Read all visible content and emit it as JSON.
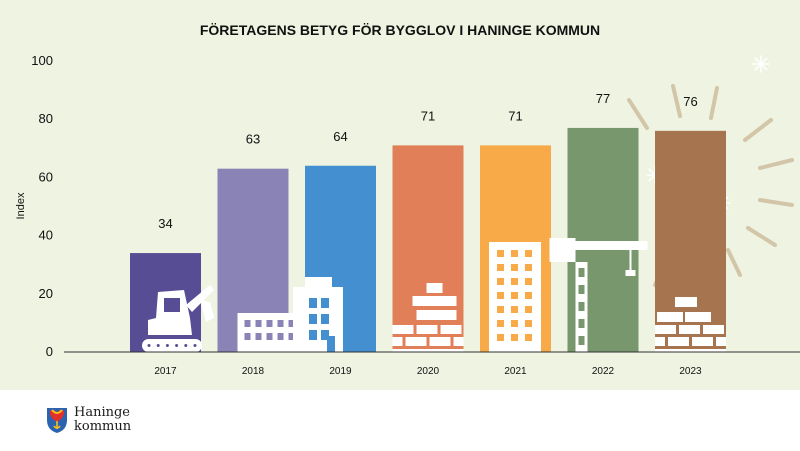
{
  "chart_data": {
    "type": "bar",
    "title": "FÖRETAGENS BETYG FÖR BYGGLOV I HANINGE KOMMUN",
    "xlabel": "",
    "ylabel": "Index",
    "ylim": [
      0,
      100
    ],
    "yticks": [
      0,
      20,
      40,
      60,
      80,
      100
    ],
    "categories": [
      "2017",
      "2018",
      "2019",
      "2020",
      "2021",
      "2022",
      "2023"
    ],
    "values": [
      34,
      63,
      64,
      71,
      71,
      77,
      76
    ],
    "colors": [
      "#574d94",
      "#8a84b6",
      "#438fd0",
      "#e07f58",
      "#f8aa48",
      "#78976c",
      "#a6744f"
    ],
    "grid": false,
    "legend": "none",
    "data_labels": true
  },
  "logo": {
    "line1": "Haninge",
    "line2": "kommun"
  }
}
